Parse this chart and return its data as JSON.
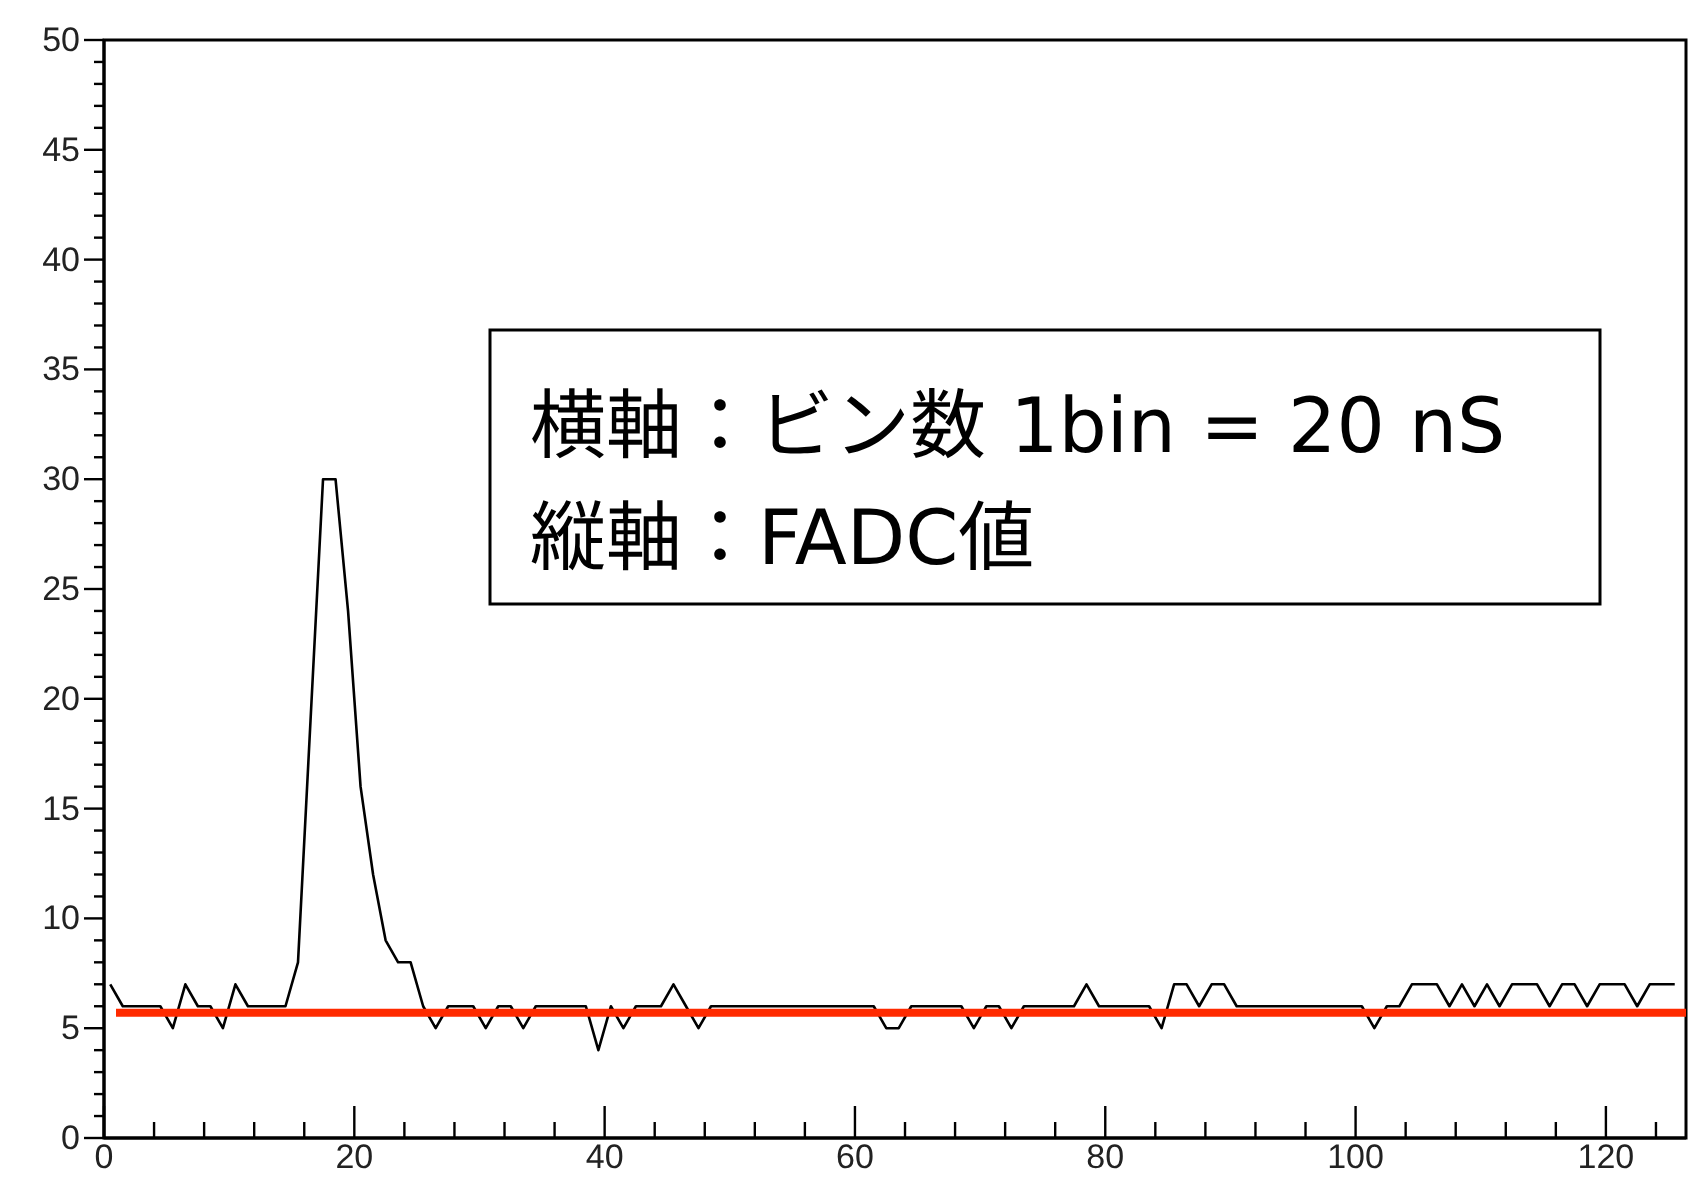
{
  "chart_data": {
    "type": "line",
    "x": [
      0.5,
      1.5,
      2.5,
      3.5,
      4.5,
      5.5,
      6.5,
      7.5,
      8.5,
      9.5,
      10.5,
      11.5,
      12.5,
      13.5,
      14.5,
      15.5,
      16.5,
      17.5,
      18.5,
      19.5,
      20.5,
      21.5,
      22.5,
      23.5,
      24.5,
      25.5,
      26.5,
      27.5,
      28.5,
      29.5,
      30.5,
      31.5,
      32.5,
      33.5,
      34.5,
      35.5,
      36.5,
      37.5,
      38.5,
      39.5,
      40.5,
      41.5,
      42.5,
      43.5,
      44.5,
      45.5,
      46.5,
      47.5,
      48.5,
      49.5,
      50.5,
      51.5,
      52.5,
      53.5,
      54.5,
      55.5,
      56.5,
      57.5,
      58.5,
      59.5,
      60.5,
      61.5,
      62.5,
      63.5,
      64.5,
      65.5,
      66.5,
      67.5,
      68.5,
      69.5,
      70.5,
      71.5,
      72.5,
      73.5,
      74.5,
      75.5,
      76.5,
      77.5,
      78.5,
      79.5,
      80.5,
      81.5,
      82.5,
      83.5,
      84.5,
      85.5,
      86.5,
      87.5,
      88.5,
      89.5,
      90.5,
      91.5,
      92.5,
      93.5,
      94.5,
      95.5,
      96.5,
      97.5,
      98.5,
      99.5,
      100.5,
      101.5,
      102.5,
      103.5,
      104.5,
      105.5,
      106.5,
      107.5,
      108.5,
      109.5,
      110.5,
      111.5,
      112.5,
      113.5,
      114.5,
      115.5,
      116.5,
      117.5,
      118.5,
      119.5,
      120.5,
      121.5,
      122.5,
      123.5,
      124.5,
      125.5
    ],
    "series": [
      {
        "color": "#000000",
        "values": [
          7,
          6,
          6,
          6,
          6,
          5,
          7,
          6,
          6,
          5,
          7,
          6,
          6,
          6,
          6,
          8,
          19,
          30,
          30,
          24,
          16,
          12,
          9,
          8,
          8,
          6,
          5,
          6,
          6,
          6,
          5,
          6,
          6,
          5,
          6,
          6,
          6,
          6,
          6,
          4,
          6,
          5,
          6,
          6,
          6,
          7,
          6,
          5,
          6,
          6,
          6,
          6,
          6,
          6,
          6,
          6,
          6,
          6,
          6,
          6,
          6,
          6,
          5,
          5,
          6,
          6,
          6,
          6,
          6,
          5,
          6,
          6,
          5,
          6,
          6,
          6,
          6,
          6,
          7,
          6,
          6,
          6,
          6,
          6,
          5,
          7,
          7,
          6,
          7,
          7,
          6,
          6,
          6,
          6,
          6,
          6,
          6,
          6,
          6,
          6,
          6,
          5,
          6,
          6,
          7,
          7,
          7,
          6,
          7,
          6,
          7,
          6,
          7,
          7,
          7,
          6,
          7,
          7,
          6,
          7,
          7,
          7,
          6,
          7,
          7,
          7
        ]
      }
    ],
    "xlim": [
      0,
      126.4
    ],
    "xticks": [
      0,
      {
        "value": 4,
        "label": null
      },
      {
        "value": 8,
        "label": null
      },
      {
        "value": 12,
        "label": null
      },
      {
        "value": 16,
        "label": null
      },
      20,
      {
        "value": 24,
        "label": null
      },
      {
        "value": 28,
        "label": null
      },
      {
        "value": 32,
        "label": null
      },
      {
        "value": 36,
        "label": null
      },
      40,
      {
        "value": 44,
        "label": null
      },
      {
        "value": 48,
        "label": null
      },
      {
        "value": 52,
        "label": null
      },
      {
        "value": 56,
        "label": null
      },
      60,
      {
        "value": 64,
        "label": null
      },
      {
        "value": 68,
        "label": null
      },
      {
        "value": 72,
        "label": null
      },
      {
        "value": 76,
        "label": null
      },
      80,
      {
        "value": 84,
        "label": null
      },
      {
        "value": 88,
        "label": null
      },
      {
        "value": 92,
        "label": null
      },
      {
        "value": 96,
        "label": null
      },
      100,
      {
        "value": 104,
        "label": null
      },
      {
        "value": 108,
        "label": null
      },
      {
        "value": 112,
        "label": null
      },
      {
        "value": 116,
        "label": null
      },
      120,
      {
        "value": 124,
        "label": null
      }
    ],
    "ylim": [
      0,
      50
    ],
    "yticks": [
      0,
      {
        "value": 1,
        "label": null
      },
      {
        "value": 2,
        "label": null
      },
      {
        "value": 3,
        "label": null
      },
      {
        "value": 4,
        "label": null
      },
      5,
      {
        "value": 6,
        "label": null
      },
      {
        "value": 7,
        "label": null
      },
      {
        "value": 8,
        "label": null
      },
      {
        "value": 9,
        "label": null
      },
      10,
      {
        "value": 11,
        "label": null
      },
      {
        "value": 12,
        "label": null
      },
      {
        "value": 13,
        "label": null
      },
      {
        "value": 14,
        "label": null
      },
      15,
      {
        "value": 16,
        "label": null
      },
      {
        "value": 17,
        "label": null
      },
      {
        "value": 18,
        "label": null
      },
      {
        "value": 19,
        "label": null
      },
      20,
      {
        "value": 21,
        "label": null
      },
      {
        "value": 22,
        "label": null
      },
      {
        "value": 23,
        "label": null
      },
      {
        "value": 24,
        "label": null
      },
      25,
      {
        "value": 26,
        "label": null
      },
      {
        "value": 27,
        "label": null
      },
      {
        "value": 28,
        "label": null
      },
      {
        "value": 29,
        "label": null
      },
      30,
      {
        "value": 31,
        "label": null
      },
      {
        "value": 32,
        "label": null
      },
      {
        "value": 33,
        "label": null
      },
      {
        "value": 34,
        "label": null
      },
      35,
      {
        "value": 36,
        "label": null
      },
      {
        "value": 37,
        "label": null
      },
      {
        "value": 38,
        "label": null
      },
      {
        "value": 39,
        "label": null
      },
      40,
      {
        "value": 41,
        "label": null
      },
      {
        "value": 42,
        "label": null
      },
      {
        "value": 43,
        "label": null
      },
      {
        "value": 44,
        "label": null
      },
      45,
      {
        "value": 46,
        "label": null
      },
      {
        "value": 47,
        "label": null
      },
      {
        "value": 48,
        "label": null
      },
      {
        "value": 49,
        "label": null
      },
      50
    ],
    "ref_lines": [
      {
        "axis": "y",
        "value": 5.7,
        "color": "#ff2a00"
      }
    ],
    "annotations": [
      "横軸：ビン数 1bin = 20 nS",
      "縦軸：FADC値"
    ],
    "grid": false,
    "marker": "none",
    "line_style": "solid"
  }
}
